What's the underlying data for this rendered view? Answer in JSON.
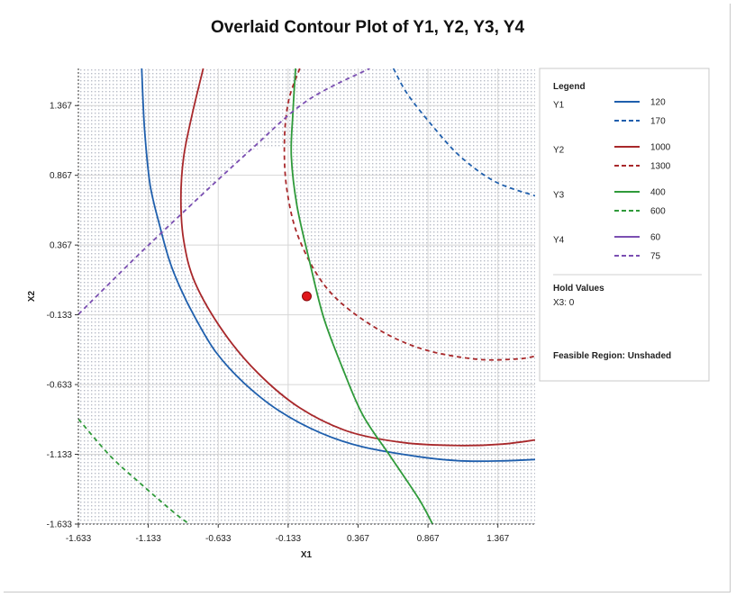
{
  "chart_data": {
    "type": "contour",
    "title": "Overlaid Contour Plot of Y1, Y2, Y3, Y4",
    "xlabel": "X1",
    "ylabel": "X2",
    "xlim": [
      -1.633,
      1.633
    ],
    "ylim": [
      -1.633,
      1.633
    ],
    "x_ticks": [
      "-1.633",
      "-1.133",
      "-0.633",
      "-0.133",
      "0.367",
      "0.867",
      "1.367"
    ],
    "y_ticks": [
      "-1.633",
      "-1.133",
      "-0.633",
      "-0.133",
      "0.367",
      "0.867",
      "1.367"
    ],
    "grid": true,
    "colors": {
      "Y1": "#1f5fad",
      "Y2": "#a8282b",
      "Y3": "#2f9a3a",
      "Y4": "#7b4fb2"
    },
    "series": [
      {
        "name": "Y1",
        "level": "120",
        "style": "solid",
        "x": [
          -1.18,
          -1.16,
          -1.12,
          -1.05,
          -0.98,
          -0.9,
          -0.8,
          -0.65,
          -0.45,
          -0.2,
          0.1,
          0.4,
          0.8,
          1.1,
          1.4,
          1.633
        ],
        "y": [
          1.633,
          1.2,
          0.8,
          0.5,
          0.25,
          0.05,
          -0.15,
          -0.4,
          -0.62,
          -0.82,
          -0.98,
          -1.08,
          -1.15,
          -1.18,
          -1.18,
          -1.17
        ]
      },
      {
        "name": "Y1",
        "level": "170",
        "style": "dashed",
        "x": [
          0.62,
          0.72,
          0.9,
          1.1,
          1.35,
          1.633
        ],
        "y": [
          1.633,
          1.45,
          1.22,
          1.0,
          0.82,
          0.72
        ]
      },
      {
        "name": "Y2",
        "level": "1000",
        "style": "solid",
        "x": [
          -0.74,
          -0.82,
          -0.88,
          -0.9,
          -0.88,
          -0.8,
          -0.6,
          -0.35,
          -0.05,
          0.3,
          0.7,
          1.1,
          1.4,
          1.633
        ],
        "y": [
          1.633,
          1.3,
          1.0,
          0.7,
          0.4,
          0.1,
          -0.25,
          -0.55,
          -0.8,
          -0.97,
          -1.05,
          -1.07,
          -1.06,
          -1.03
        ]
      },
      {
        "name": "Y2",
        "level": "1300",
        "style": "dashed",
        "x": [
          -0.05,
          -0.13,
          -0.16,
          -0.14,
          -0.05,
          0.15,
          0.45,
          0.8,
          1.2,
          1.5,
          1.633
        ],
        "y": [
          1.633,
          1.4,
          1.1,
          0.75,
          0.4,
          0.05,
          -0.2,
          -0.37,
          -0.45,
          -0.45,
          -0.43
        ]
      },
      {
        "name": "Y3",
        "level": "400",
        "style": "solid",
        "x": [
          -0.08,
          -0.1,
          -0.11,
          -0.07,
          0.02,
          0.12,
          0.25,
          0.4,
          0.6,
          0.8,
          0.9
        ],
        "y": [
          1.633,
          1.3,
          1.0,
          0.65,
          0.25,
          -0.15,
          -0.5,
          -0.85,
          -1.15,
          -1.45,
          -1.633
        ]
      },
      {
        "name": "Y4",
        "level": "75",
        "style": "dashed",
        "x": [
          -1.633,
          -1.2,
          -0.8,
          -0.4,
          0.0,
          0.45
        ],
        "y": [
          -0.13,
          0.3,
          0.68,
          1.05,
          1.4,
          1.633
        ]
      },
      {
        "name": "Y3",
        "level": "600",
        "style": "dashed",
        "x": [
          -1.633,
          -1.4,
          -1.18,
          -0.95,
          -0.84
        ],
        "y": [
          -0.88,
          -1.15,
          -1.35,
          -1.55,
          -1.633
        ]
      }
    ],
    "design_point": {
      "x": 0.0,
      "y": 0.0
    },
    "legend": {
      "title": "Legend",
      "groups": [
        {
          "name": "Y1",
          "entries": [
            {
              "label": "120",
              "style": "solid"
            },
            {
              "label": "170",
              "style": "dashed"
            }
          ]
        },
        {
          "name": "Y2",
          "entries": [
            {
              "label": "1000",
              "style": "solid"
            },
            {
              "label": "1300",
              "style": "dashed"
            }
          ]
        },
        {
          "name": "Y3",
          "entries": [
            {
              "label": "400",
              "style": "solid"
            },
            {
              "label": "600",
              "style": "dashed"
            }
          ]
        },
        {
          "name": "Y4",
          "entries": [
            {
              "label": "60",
              "style": "solid"
            },
            {
              "label": "75",
              "style": "dashed"
            }
          ]
        }
      ],
      "hold_values_title": "Hold Values",
      "hold_values": "X3: 0",
      "feasible_region": "Feasible Region: Unshaded"
    }
  }
}
